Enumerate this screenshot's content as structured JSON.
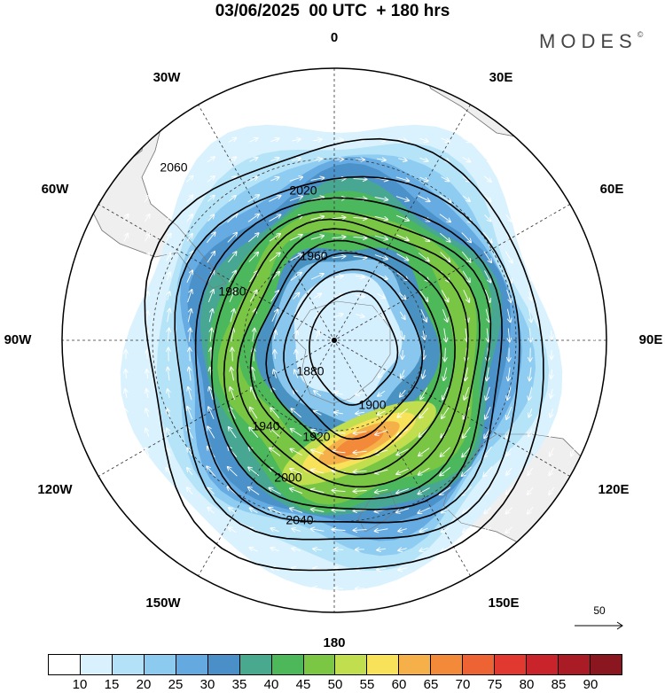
{
  "title": "03/06/2025  00 UTC  + 180 hrs",
  "brand": {
    "name": "MODES",
    "mark": "©"
  },
  "longitude_labels": [
    {
      "id": "0",
      "text": "0"
    },
    {
      "id": "30E",
      "text": "30E"
    },
    {
      "id": "60E",
      "text": "60E"
    },
    {
      "id": "90E",
      "text": "90E"
    },
    {
      "id": "120E",
      "text": "120E"
    },
    {
      "id": "150E",
      "text": "150E"
    },
    {
      "id": "180",
      "text": "180"
    },
    {
      "id": "150W",
      "text": "150W"
    },
    {
      "id": "120W",
      "text": "120W"
    },
    {
      "id": "90W",
      "text": "90W"
    },
    {
      "id": "60W",
      "text": "60W"
    },
    {
      "id": "30W",
      "text": "30W"
    }
  ],
  "contour_labels": [
    "1880",
    "1900",
    "1920",
    "1940",
    "1960",
    "1980",
    "2000",
    "2020",
    "2040",
    "2060"
  ],
  "reference_vector": {
    "value": "50"
  },
  "colorbar": {
    "colors": [
      "#ffffff",
      "#d8f1fd",
      "#b3e2f8",
      "#8ccaf0",
      "#64a9df",
      "#4a8fc8",
      "#48a98f",
      "#4cb85a",
      "#7bc643",
      "#c1de4f",
      "#f7e25a",
      "#f6b04a",
      "#f38a3a",
      "#ee6333",
      "#e1382f",
      "#c9242b",
      "#a91c26",
      "#8a1620"
    ],
    "labels": [
      "10",
      "15",
      "20",
      "25",
      "30",
      "35",
      "40",
      "45",
      "50",
      "55",
      "60",
      "65",
      "70",
      "75",
      "80",
      "85",
      "90"
    ]
  },
  "map_colors": {
    "land": "#efefef",
    "coast": "#7a7a7a",
    "contour": "#000000",
    "grid": "#333333",
    "arrows": "#ffffff"
  }
}
